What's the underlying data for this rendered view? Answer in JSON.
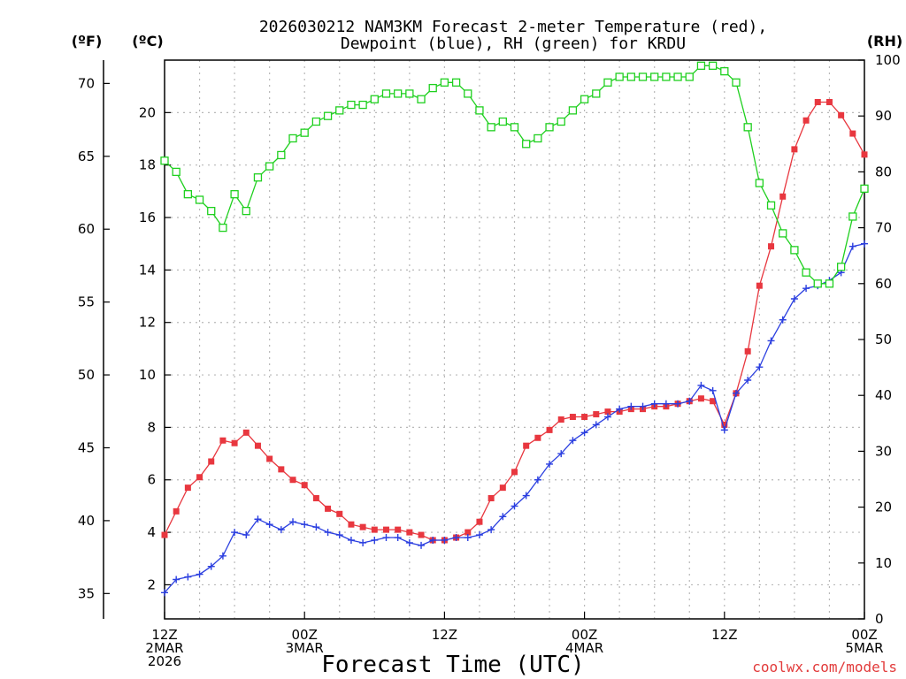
{
  "chart_data": {
    "type": "line",
    "title_line1": "2026030212 NAM3KM Forecast 2-meter Temperature (red),",
    "title_line2": "Dewpoint (blue), RH (green) for KRDU",
    "xlabel": "Forecast Time (UTC)",
    "credit": "coolwx.com/models",
    "unit_labels": {
      "fahrenheit": "(ºF)",
      "celsius": "(ºC)",
      "rh": "(RH)"
    },
    "x_hours_range": [
      0,
      60
    ],
    "celsius_range": [
      0.7,
      22.0
    ],
    "rh_range": [
      0,
      100
    ],
    "x_ticks": [
      {
        "hour": 0,
        "lines": [
          "12Z",
          "2MAR",
          "2026"
        ]
      },
      {
        "hour": 12,
        "lines": [
          "00Z",
          "3MAR"
        ]
      },
      {
        "hour": 24,
        "lines": [
          "12Z"
        ]
      },
      {
        "hour": 36,
        "lines": [
          "00Z",
          "4MAR"
        ]
      },
      {
        "hour": 48,
        "lines": [
          "12Z"
        ]
      },
      {
        "hour": 60,
        "lines": [
          "00Z",
          "5MAR"
        ]
      }
    ],
    "celsius_ticks": [
      "2",
      "4",
      "6",
      "8",
      "10",
      "12",
      "14",
      "16",
      "18",
      "20"
    ],
    "fahrenheit_ticks": [
      "35",
      "40",
      "45",
      "50",
      "55",
      "60",
      "65",
      "70"
    ],
    "rh_ticks": [
      "0",
      "10",
      "20",
      "30",
      "40",
      "50",
      "60",
      "70",
      "80",
      "90",
      "100"
    ],
    "series": [
      {
        "name": "2-meter Temperature",
        "color": "#e8373f",
        "marker": "filled-square",
        "values": [
          3.9,
          4.8,
          5.7,
          6.1,
          6.7,
          7.5,
          7.4,
          7.8,
          7.3,
          6.8,
          6.4,
          6.0,
          5.8,
          5.3,
          4.9,
          4.7,
          4.3,
          4.2,
          4.1,
          4.1,
          4.1,
          4.0,
          3.9,
          3.7,
          3.7,
          3.8,
          4.0,
          4.4,
          5.3,
          5.7,
          6.3,
          7.3,
          7.6,
          7.9,
          8.3,
          8.4,
          8.4,
          8.5,
          8.6,
          8.6,
          8.7,
          8.7,
          8.8,
          8.8,
          8.9,
          9.0,
          9.1,
          9.0,
          8.1,
          9.3,
          10.9,
          13.4,
          14.9,
          16.8,
          18.6,
          19.7,
          20.4,
          20.4,
          19.9,
          19.2,
          18.4
        ]
      },
      {
        "name": "Dewpoint",
        "color": "#2b3fe0",
        "marker": "plus",
        "values": [
          1.7,
          2.2,
          2.3,
          2.4,
          2.7,
          3.1,
          4.0,
          3.9,
          4.5,
          4.3,
          4.1,
          4.4,
          4.3,
          4.2,
          4.0,
          3.9,
          3.7,
          3.6,
          3.7,
          3.8,
          3.8,
          3.6,
          3.5,
          3.7,
          3.7,
          3.8,
          3.8,
          3.9,
          4.1,
          4.6,
          5.0,
          5.4,
          6.0,
          6.6,
          7.0,
          7.5,
          7.8,
          8.1,
          8.4,
          8.7,
          8.8,
          8.8,
          8.9,
          8.9,
          8.9,
          9.0,
          9.6,
          9.4,
          7.9,
          9.3,
          9.8,
          10.3,
          11.3,
          12.1,
          12.9,
          13.3,
          13.4,
          13.6,
          13.9,
          14.9,
          15.0
        ]
      },
      {
        "name": "RH",
        "color": "#1fd01f",
        "marker": "open-square",
        "values": [
          82,
          80,
          76,
          75,
          73,
          70,
          76,
          73,
          79,
          81,
          83,
          86,
          87,
          89,
          90,
          91,
          92,
          92,
          93,
          94,
          94,
          94,
          93,
          95,
          96,
          96,
          94,
          91,
          88,
          89,
          88,
          85,
          86,
          88,
          89,
          91,
          93,
          94,
          96,
          97,
          97,
          97,
          97,
          97,
          97,
          97,
          99,
          99,
          98,
          96,
          88,
          78,
          74,
          69,
          66,
          62,
          60,
          60,
          63,
          72,
          77
        ]
      }
    ]
  }
}
